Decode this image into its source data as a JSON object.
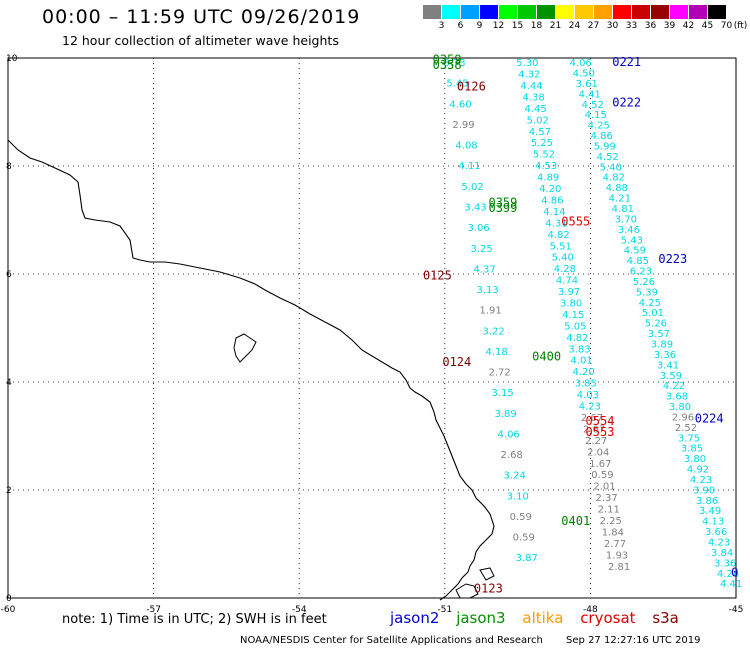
{
  "header": {
    "title": "00:00 – 11:59 UTC 09/26/2019",
    "subtitle": "12 hour collection of altimeter wave heights"
  },
  "legend": {
    "unit": "(ft)",
    "levels": [
      {
        "label": "3",
        "color": "#808080"
      },
      {
        "label": "6",
        "color": "#00ffff"
      },
      {
        "label": "9",
        "color": "#00a0ff"
      },
      {
        "label": "12",
        "color": "#0000ff"
      },
      {
        "label": "15",
        "color": "#00ff00"
      },
      {
        "label": "18",
        "color": "#00c800"
      },
      {
        "label": "21",
        "color": "#009000"
      },
      {
        "label": "24",
        "color": "#ffff00"
      },
      {
        "label": "27",
        "color": "#ffc800"
      },
      {
        "label": "30",
        "color": "#ffa000"
      },
      {
        "label": "33",
        "color": "#ff0000"
      },
      {
        "label": "36",
        "color": "#c80000"
      },
      {
        "label": "39",
        "color": "#960000"
      },
      {
        "label": "42",
        "color": "#ff00ff"
      },
      {
        "label": "45",
        "color": "#b400b4"
      },
      {
        "label": "70",
        "color": "#000000"
      }
    ]
  },
  "axes": {
    "x_ticks": [
      "-60",
      "-57",
      "-54",
      "-51",
      "-48",
      "-45"
    ],
    "y_ticks": [
      "10",
      "8",
      "6",
      "4",
      "2",
      "0"
    ]
  },
  "tracks": [
    {
      "values": [
        "3.73",
        "5.45",
        "4.60",
        "2.99",
        "4.08",
        "4.11",
        "5.02",
        "3.43",
        "3.06",
        "3.25",
        "4.37",
        "3.13",
        "1.91",
        "3.22",
        "4.18",
        "2.72",
        "3.15",
        "3.89",
        "4.06",
        "2.68",
        "3.24",
        "3.10",
        "0.59",
        "0.59",
        "3.87"
      ],
      "lon0": -50.8,
      "lat0": 9.85,
      "dlon": 0.062,
      "dlat": -0.382,
      "colors": {
        "1.91": "#808080",
        "2.72": "#808080",
        "2.68": "#808080",
        "0.59": "#808080",
        "2.99": "#808080"
      }
    },
    {
      "values": [
        "5.30",
        "4.32",
        "4.44",
        "4.38",
        "4.45",
        "5.02",
        "4.57",
        "5.25",
        "5.52",
        "4.53",
        "4.89",
        "4.20",
        "4.86",
        "4.14",
        "4.31",
        "4.82",
        "5.51",
        "5.40",
        "4.28",
        "4.74",
        "3.97",
        "3.80",
        "4.15",
        "5.05",
        "4.82",
        "3.83",
        "4.01",
        "4.20",
        "3.85",
        "4.03",
        "4.23",
        "2.67",
        "2.67",
        "2.27",
        "2.04",
        "1.67",
        "0.59",
        "2.01",
        "2.37",
        "2.11",
        "2.25",
        "1.84",
        "2.77",
        "1.93",
        "2.81"
      ],
      "lon0": -49.3,
      "lat0": 9.85,
      "dlon": 0.043,
      "dlat": -0.212,
      "colors": {
        "2.67": "#808080",
        "2.27": "#808080",
        "2.04": "#808080",
        "1.67": "#808080",
        "0.59": "#808080",
        "2.01": "#808080",
        "2.37": "#808080",
        "2.11": "#808080",
        "2.25": "#808080",
        "1.84": "#808080",
        "2.77": "#808080",
        "1.93": "#808080",
        "2.81": "#808080"
      }
    },
    {
      "values": [
        "4.06",
        "4.50",
        "3.61",
        "4.41",
        "4.52",
        "4.15",
        "4.25",
        "4.86",
        "5.99",
        "4.52",
        "5.40",
        "4.82",
        "4.88",
        "4.21",
        "4.81",
        "3.70",
        "3.46",
        "5.43",
        "4.59",
        "4.85",
        "6.23",
        "5.26",
        "5.39",
        "4.25",
        "5.01",
        "5.26",
        "3.57",
        "3.89",
        "3.36",
        "3.41",
        "3.59",
        "4.22",
        "3.68",
        "3.80",
        "2.96",
        "2.52",
        "3.75",
        "3.85",
        "3.80",
        "4.92",
        "4.23",
        "3.90",
        "3.86",
        "3.49",
        "4.13",
        "3.66",
        "4.23",
        "3.84",
        "3.36",
        "4.24",
        "4.41"
      ],
      "lon0": -48.2,
      "lat0": 9.85,
      "dlon": 0.062,
      "dlat": -0.193,
      "colors": {
        "2.96": "#808080",
        "2.52": "#808080"
      }
    }
  ],
  "pass_labels": [
    {
      "text": "0359",
      "lon": -51.25,
      "lat": 9.9,
      "color": "#008000"
    },
    {
      "text": "0358",
      "lon": -51.25,
      "lat": 9.8,
      "color": "#008000"
    },
    {
      "text": "0126",
      "lon": -50.75,
      "lat": 9.4,
      "color": "#800000"
    },
    {
      "text": "0221",
      "lon": -47.55,
      "lat": 9.85,
      "color": "#0000c0"
    },
    {
      "text": "0222",
      "lon": -47.55,
      "lat": 9.1,
      "color": "#0000c0"
    },
    {
      "text": "0359",
      "lon": -50.1,
      "lat": 7.25,
      "color": "#008000"
    },
    {
      "text": "0399",
      "lon": -50.1,
      "lat": 7.15,
      "color": "#008000"
    },
    {
      "text": "0555",
      "lon": -48.6,
      "lat": 6.9,
      "color": "#e00000"
    },
    {
      "text": "0125",
      "lon": -51.45,
      "lat": 5.9,
      "color": "#800000"
    },
    {
      "text": "0223",
      "lon": -46.6,
      "lat": 6.2,
      "color": "#0000c0"
    },
    {
      "text": "0400",
      "lon": -49.2,
      "lat": 4.4,
      "color": "#008000"
    },
    {
      "text": "0124",
      "lon": -51.05,
      "lat": 4.3,
      "color": "#800000"
    },
    {
      "text": "0554",
      "lon": -48.1,
      "lat": 3.2,
      "color": "#e00000"
    },
    {
      "text": "0553",
      "lon": -48.1,
      "lat": 3.0,
      "color": "#e00000"
    },
    {
      "text": "0224",
      "lon": -45.85,
      "lat": 3.25,
      "color": "#0000c0"
    },
    {
      "text": "0401",
      "lon": -48.6,
      "lat": 1.35,
      "color": "#008000"
    },
    {
      "text": "0123",
      "lon": -50.4,
      "lat": 0.1,
      "color": "#800000"
    },
    {
      "text": "0",
      "lon": -45.1,
      "lat": 0.4,
      "color": "#0000c0"
    }
  ],
  "footer": {
    "note": "note: 1) Time is in UTC; 2) SWH is in feet",
    "missions": [
      {
        "name": "jason2",
        "color": "#0000d0"
      },
      {
        "name": "jason3",
        "color": "#009000"
      },
      {
        "name": "altika",
        "color": "#ff9900"
      },
      {
        "name": "cryosat",
        "color": "#e00000"
      },
      {
        "name": "s3a",
        "color": "#800000"
      }
    ],
    "credit": "NOAA/NESDIS Center for Satellite Applications and Research",
    "timestamp": "Sep 27 12:27:16 UTC 2019"
  }
}
